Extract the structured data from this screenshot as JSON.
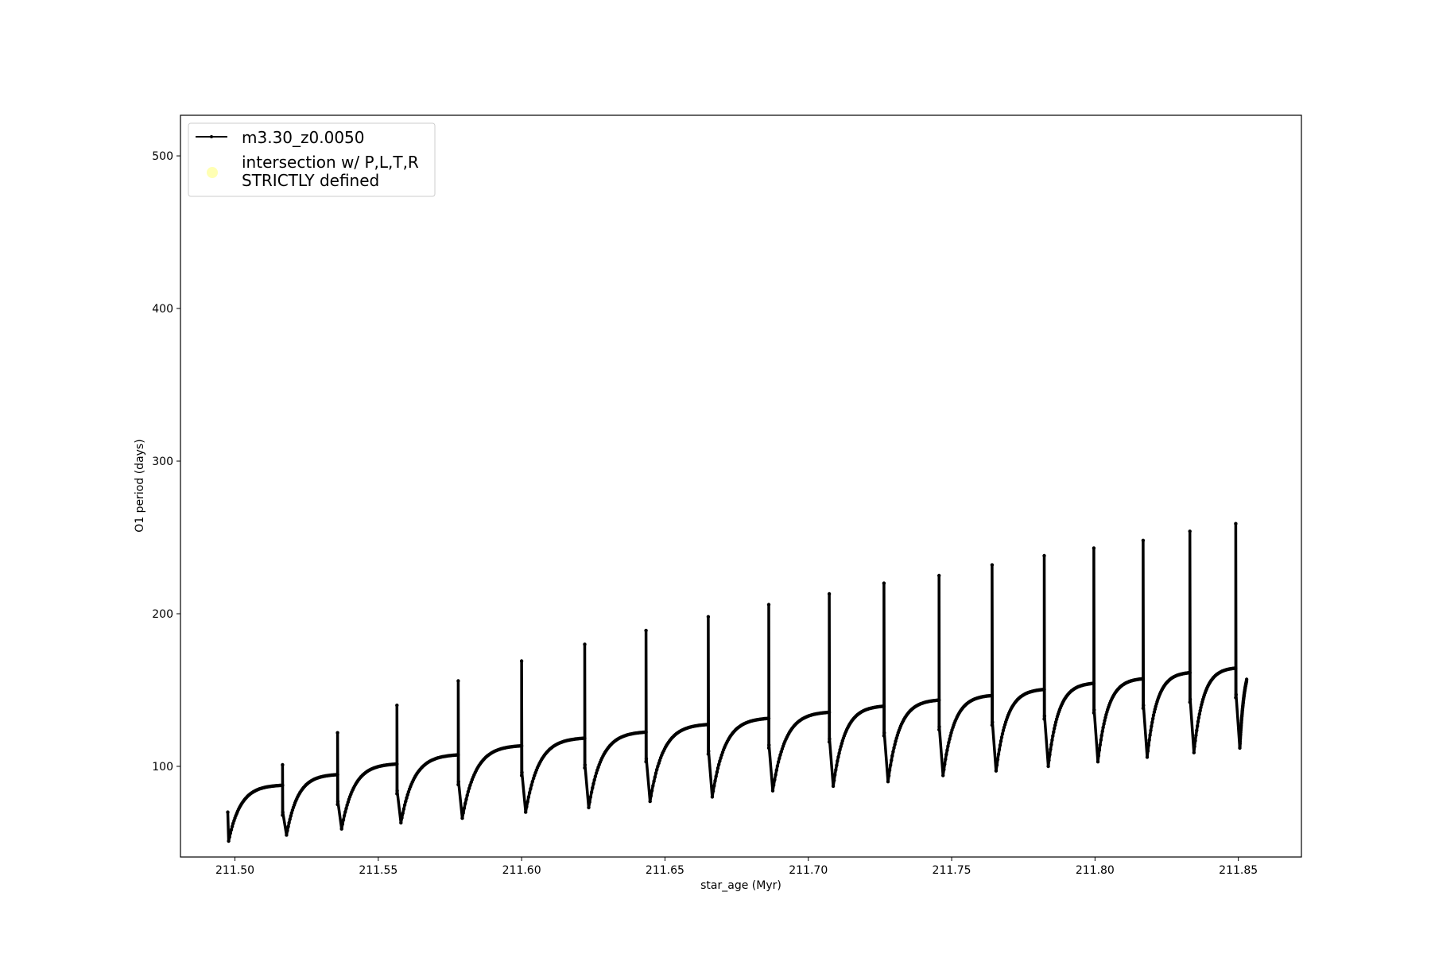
{
  "chart_data": {
    "type": "line",
    "xlabel": "star_age (Myr)",
    "ylabel": "O1 period (days)",
    "xlim": [
      211.481,
      211.872
    ],
    "ylim": [
      40.6,
      526.6
    ],
    "xticks": [
      "211.50",
      "211.55",
      "211.60",
      "211.65",
      "211.70",
      "211.75",
      "211.80",
      "211.85"
    ],
    "yticks": [
      "100",
      "200",
      "300",
      "400",
      "500"
    ],
    "grid": false,
    "legend_position": "top-left",
    "legend": [
      {
        "label": "m3.30_z0.0050",
        "color": "#000000",
        "marker": "line-dot"
      },
      {
        "label": "intersection w/ P,L,T,R\nSTRICTLY defined",
        "label_lines": [
          "intersection w/ P,L,T,R",
          "STRICTLY defined"
        ],
        "color": "#ffffb3",
        "marker": "circle"
      }
    ],
    "series": [
      {
        "name": "m3.30_z0.0050",
        "color": "#000000",
        "start": {
          "age": 211.4975,
          "period": 70,
          "min": 51
        },
        "cycles": [
          {
            "spike_age": 211.5166,
            "plateau": 88,
            "peak": 101,
            "min_after": 55
          },
          {
            "spike_age": 211.5358,
            "plateau": 95,
            "peak": 122,
            "min_after": 59
          },
          {
            "spike_age": 211.5565,
            "plateau": 102,
            "peak": 140,
            "min_after": 63
          },
          {
            "spike_age": 211.5779,
            "plateau": 108,
            "peak": 156,
            "min_after": 66
          },
          {
            "spike_age": 211.6,
            "plateau": 114,
            "peak": 169,
            "min_after": 70
          },
          {
            "spike_age": 211.622,
            "plateau": 119,
            "peak": 180,
            "min_after": 73
          },
          {
            "spike_age": 211.6434,
            "plateau": 123,
            "peak": 189,
            "min_after": 77
          },
          {
            "spike_age": 211.6651,
            "plateau": 128,
            "peak": 198,
            "min_after": 80
          },
          {
            "spike_age": 211.6862,
            "plateau": 132,
            "peak": 206,
            "min_after": 84
          },
          {
            "spike_age": 211.7073,
            "plateau": 136,
            "peak": 213,
            "min_after": 87
          },
          {
            "spike_age": 211.7264,
            "plateau": 140,
            "peak": 220,
            "min_after": 90
          },
          {
            "spike_age": 211.7456,
            "plateau": 144,
            "peak": 225,
            "min_after": 94
          },
          {
            "spike_age": 211.7641,
            "plateau": 147,
            "peak": 232,
            "min_after": 97
          },
          {
            "spike_age": 211.7823,
            "plateau": 151,
            "peak": 238,
            "min_after": 100
          },
          {
            "spike_age": 211.7996,
            "plateau": 155,
            "peak": 243,
            "min_after": 103
          },
          {
            "spike_age": 211.8168,
            "plateau": 158,
            "peak": 248,
            "min_after": 106
          },
          {
            "spike_age": 211.8331,
            "plateau": 162,
            "peak": 254,
            "min_after": 109
          },
          {
            "spike_age": 211.8491,
            "plateau": 165,
            "peak": 259,
            "min_after": 112
          }
        ],
        "end": {
          "age": 211.8529,
          "period": 157
        }
      }
    ]
  }
}
